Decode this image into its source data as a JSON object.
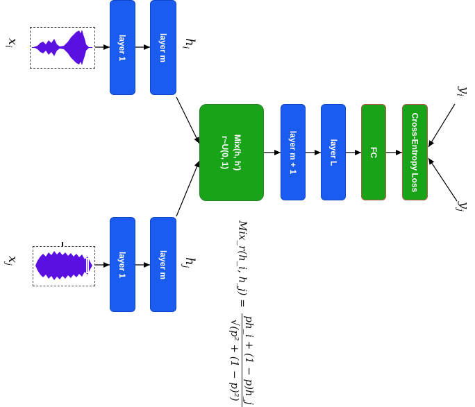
{
  "inputs": {
    "xi_label": "x_i",
    "xj_label": "x_j",
    "hi_label": "h_i",
    "hj_label": "h_j",
    "yi_label": "y_i",
    "yj_label": "y_j"
  },
  "top_branch": {
    "layer1": "layer 1",
    "layerm": "layer m"
  },
  "bottom_branch": {
    "layer1": "layer 1",
    "layerm": "layer m"
  },
  "mix": {
    "line1": "Mix(h, h')",
    "line2": "r~U(0, 1)"
  },
  "chain": {
    "layer_m1": "layer m + 1",
    "layer_L": "layer L",
    "fc": "FC",
    "loss": "Cross-Entropy Loss"
  },
  "formula": {
    "lhs": "Mix_r(h_i, h_j) =",
    "numerator": "ph_i + (1 − p)h_j",
    "denominator": "√(p² + (1 − p)²)"
  },
  "colors": {
    "blue": "#1a5cf0",
    "green": "#19a319",
    "waveform": "#5a10e0"
  }
}
